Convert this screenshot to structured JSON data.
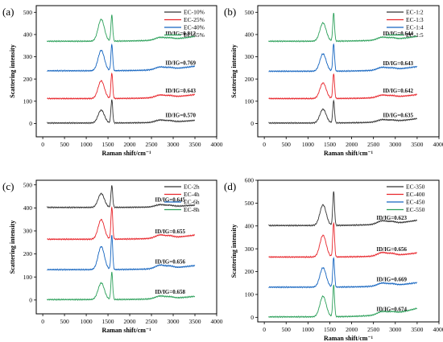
{
  "figure": {
    "panels": [
      "(a)",
      "(b)",
      "(c)",
      "(d)"
    ]
  },
  "chart_data": [
    {
      "type": "line",
      "panel_label": "(a)",
      "xlabel": "Raman shift/cm⁻¹",
      "ylabel": "Scattering intensity",
      "xlim": [
        -150,
        4000
      ],
      "ylim": [
        -60,
        530
      ],
      "xticks": [
        0,
        500,
        1000,
        1500,
        2000,
        2500,
        3000,
        3500,
        4000
      ],
      "yticks": [
        0,
        100,
        200,
        300,
        400,
        500
      ],
      "legend_position": "top-right",
      "series": [
        {
          "name": "EC-10%",
          "color": "#333333",
          "offset": 0,
          "d_height": 58,
          "g_height": 105,
          "end_value": 14,
          "ratio_label": "ID/IG=0.570"
        },
        {
          "name": "EC-25%",
          "color": "#e8262c",
          "offset": 110,
          "d_height": 80,
          "g_height": 115,
          "end_value": 130,
          "ratio_label": "ID/IG=0.643"
        },
        {
          "name": "EC-40%",
          "color": "#1565c0",
          "offset": 235,
          "d_height": 92,
          "g_height": 118,
          "end_value": 258,
          "ratio_label": "ID/IG=0.769"
        },
        {
          "name": "EC-55%",
          "color": "#2ca05a",
          "offset": 368,
          "d_height": 98,
          "g_height": 117,
          "end_value": 392,
          "ratio_label": "ID/IG=0.812"
        }
      ]
    },
    {
      "type": "line",
      "panel_label": "(b)",
      "xlabel": "Raman shift/cm⁻¹",
      "ylabel": "Scattering intensity",
      "xlim": [
        -150,
        4000
      ],
      "ylim": [
        -60,
        530
      ],
      "xticks": [
        0,
        500,
        1000,
        1500,
        2000,
        2500,
        3000,
        3500,
        4000
      ],
      "yticks": [
        0,
        100,
        200,
        300,
        400,
        500
      ],
      "legend_position": "top-right",
      "series": [
        {
          "name": "EC-1:2",
          "color": "#333333",
          "offset": 0,
          "d_height": 62,
          "g_height": 100,
          "end_value": 22,
          "ratio_label": "ID/IG=0.635"
        },
        {
          "name": "EC-1:3",
          "color": "#e8262c",
          "offset": 110,
          "d_height": 70,
          "g_height": 112,
          "end_value": 130,
          "ratio_label": "ID/IG=0.642"
        },
        {
          "name": "EC-1:4",
          "color": "#1565c0",
          "offset": 233,
          "d_height": 78,
          "g_height": 122,
          "end_value": 256,
          "ratio_label": "ID/IG=0.643"
        },
        {
          "name": "EC-1:5",
          "color": "#2ca05a",
          "offset": 368,
          "d_height": 82,
          "g_height": 125,
          "end_value": 392,
          "ratio_label": "ID/IG=0.644"
        }
      ]
    },
    {
      "type": "line",
      "panel_label": "(c)",
      "xlabel": "Raman shift/cm⁻¹",
      "ylabel": "Scattering intensity",
      "xlim": [
        -150,
        4000
      ],
      "ylim": [
        -60,
        520
      ],
      "xticks": [
        0,
        500,
        1000,
        1500,
        2000,
        2500,
        3000,
        3500,
        4000
      ],
      "yticks": [
        0,
        100,
        200,
        300,
        400,
        500
      ],
      "legend_position": "top-right",
      "series": [
        {
          "name": "EC-2h",
          "color": "#333333",
          "offset": 400,
          "d_height": 60,
          "g_height": 95,
          "end_value": 412,
          "ratio_label": "ID/IG=0.645"
        },
        {
          "name": "EC-4h",
          "color": "#e8262c",
          "offset": 262,
          "d_height": 85,
          "g_height": 140,
          "end_value": 282,
          "ratio_label": "ID/IG=0.655"
        },
        {
          "name": "EC-6h",
          "color": "#1565c0",
          "offset": 130,
          "d_height": 100,
          "g_height": 150,
          "end_value": 150,
          "ratio_label": "ID/IG=0.656"
        },
        {
          "name": "EC-8h",
          "color": "#2ca05a",
          "offset": 0,
          "d_height": 72,
          "g_height": 118,
          "end_value": 16,
          "ratio_label": "ID/IG=0.658"
        }
      ]
    },
    {
      "type": "line",
      "panel_label": "(d)",
      "xlabel": "Raman shift/cm⁻¹",
      "ylabel": "Scattering intensity",
      "xlim": [
        -150,
        4000
      ],
      "ylim": [
        -20,
        600
      ],
      "xticks": [
        0,
        500,
        1000,
        1500,
        2000,
        2500,
        3000,
        3500,
        4000
      ],
      "yticks": [
        0,
        100,
        200,
        300,
        400,
        500,
        600
      ],
      "legend_position": "top-right",
      "series": [
        {
          "name": "EC-350",
          "color": "#333333",
          "offset": 400,
          "d_height": 90,
          "g_height": 148,
          "end_value": 425,
          "ratio_label": "ID/IG=0.623"
        },
        {
          "name": "EC-400",
          "color": "#e8262c",
          "offset": 262,
          "d_height": 95,
          "g_height": 150,
          "end_value": 282,
          "ratio_label": "ID/IG=0.656"
        },
        {
          "name": "EC-450",
          "color": "#1565c0",
          "offset": 130,
          "d_height": 85,
          "g_height": 128,
          "end_value": 152,
          "ratio_label": "ID/IG=0.669"
        },
        {
          "name": "EC-550",
          "color": "#2ca05a",
          "offset": 0,
          "d_height": 90,
          "g_height": 138,
          "end_value": 40,
          "ratio_label": "ID/IG=0.674"
        }
      ]
    }
  ]
}
